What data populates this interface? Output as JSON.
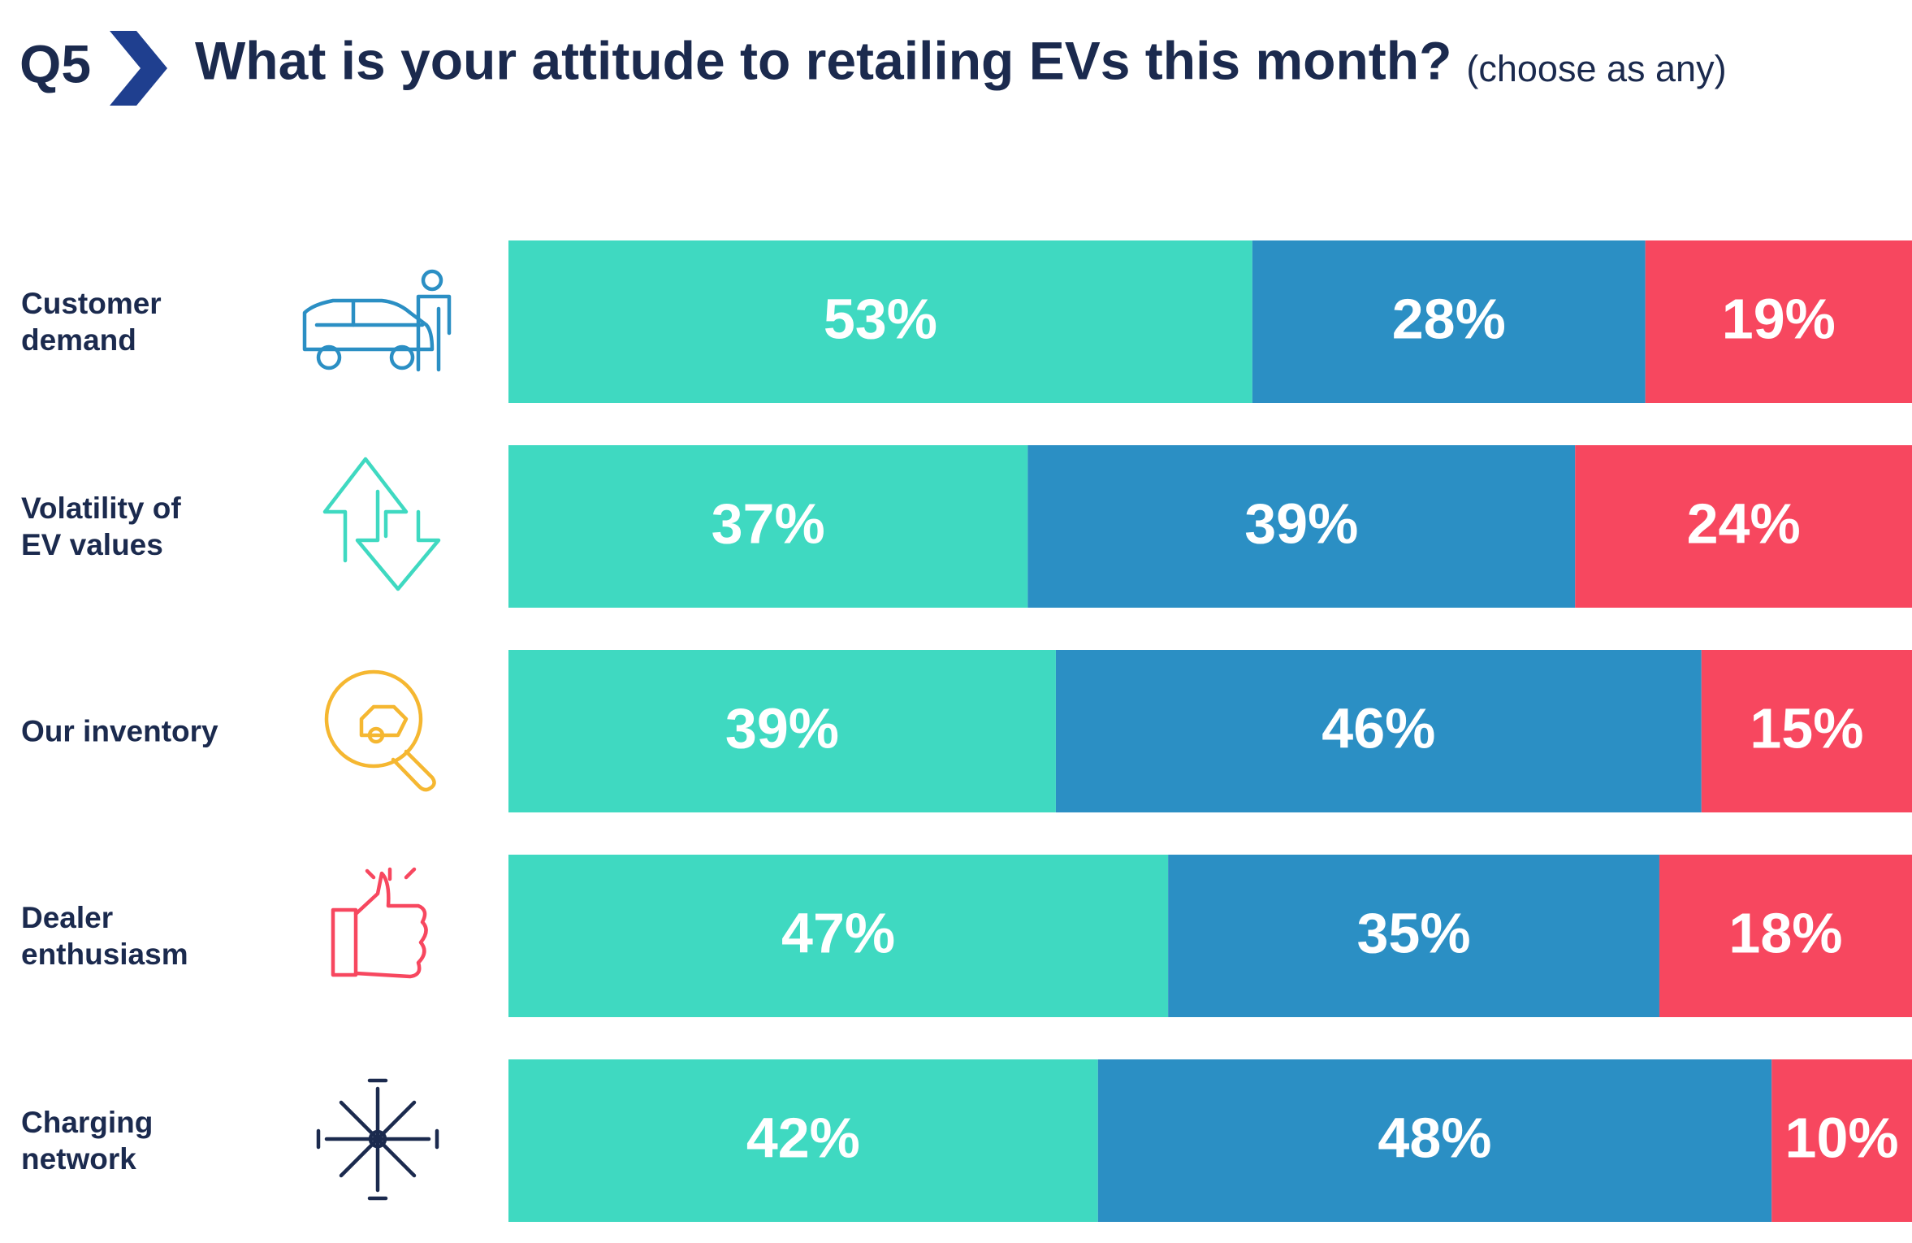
{
  "chart_data": {
    "type": "stacked_bar_horizontal",
    "label": "Q5",
    "title": "What is your attitude to retailing EVs this month?",
    "subtitle": "(choose as any)",
    "categories": [
      "Customer\ndemand",
      "Volatility of\nEV values",
      "Our inventory",
      "Dealer\nenthusiasm",
      "Charging\nnetwork"
    ],
    "xlim": [
      0,
      100
    ],
    "series": [
      {
        "color": "#3fd9c1",
        "values": [
          53,
          37,
          39,
          47,
          42
        ],
        "value_labels": [
          "53%",
          "37%",
          "39%",
          "47%",
          "42%"
        ]
      },
      {
        "color": "#2b8fc4",
        "values": [
          28,
          39,
          46,
          35,
          48
        ],
        "value_labels": [
          "28%",
          "39%",
          "46%",
          "35%",
          "48%"
        ]
      },
      {
        "color": "#f7475f",
        "values": [
          19,
          24,
          15,
          18,
          10
        ],
        "value_labels": [
          "19%",
          "24%",
          "15%",
          "18%",
          "10%"
        ]
      }
    ]
  }
}
